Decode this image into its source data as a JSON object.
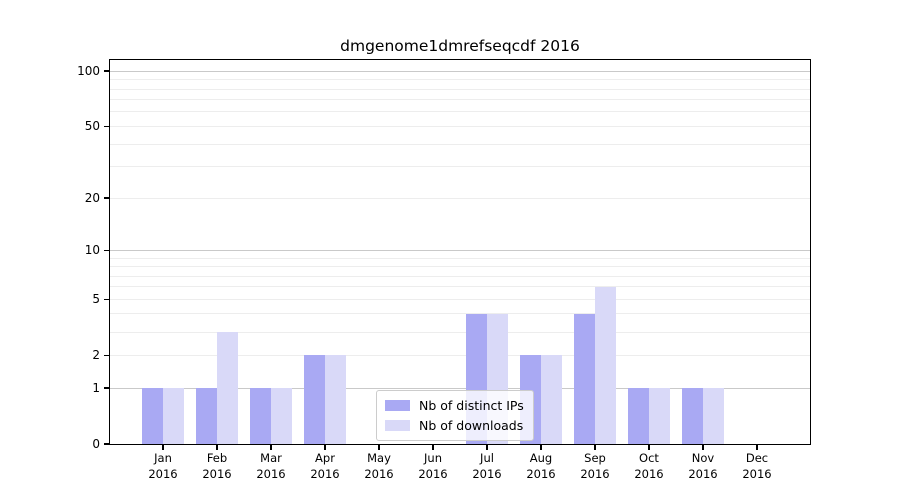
{
  "title": "dmgenome1dmrefseqcdf 2016",
  "chart_data": {
    "type": "bar",
    "title": "dmgenome1dmrefseqcdf 2016",
    "categories": [
      "Jan 2016",
      "Feb 2016",
      "Mar 2016",
      "Apr 2016",
      "May 2016",
      "Jun 2016",
      "Jul 2016",
      "Aug 2016",
      "Sep 2016",
      "Oct 2016",
      "Nov 2016",
      "Dec 2016"
    ],
    "months": [
      "Jan",
      "Feb",
      "Mar",
      "Apr",
      "May",
      "Jun",
      "Jul",
      "Aug",
      "Sep",
      "Oct",
      "Nov",
      "Dec"
    ],
    "year": "2016",
    "series": [
      {
        "name": "Nb of distinct IPs",
        "color": "#a9a9f3",
        "values": [
          1,
          1,
          1,
          2,
          0,
          0,
          4,
          2,
          4,
          1,
          1,
          0
        ]
      },
      {
        "name": "Nb of downloads",
        "color": "#d9d9f8",
        "values": [
          1,
          3,
          1,
          2,
          0,
          0,
          4,
          2,
          6,
          1,
          1,
          0
        ]
      }
    ],
    "xlabel": "",
    "ylabel": "",
    "yscale": "log1p",
    "ylim": [
      0,
      115
    ],
    "ytick_values": [
      0,
      1,
      2,
      5,
      10,
      20,
      50,
      100
    ],
    "ytick_labels": [
      "0",
      "1",
      "2",
      "5",
      "10",
      "20",
      "50",
      "100"
    ],
    "major_grid_values": [
      1,
      10,
      100
    ],
    "minor_grid_values": [
      2,
      3,
      4,
      5,
      6,
      7,
      8,
      9,
      20,
      30,
      40,
      50,
      60,
      70,
      80,
      90
    ],
    "grid": "on",
    "legend_position": "lower-center-inside",
    "colors": {
      "major_grid": "#c9c9c9",
      "minor_grid": "#ededed",
      "spine": "#000000",
      "background": "#ffffff"
    }
  }
}
